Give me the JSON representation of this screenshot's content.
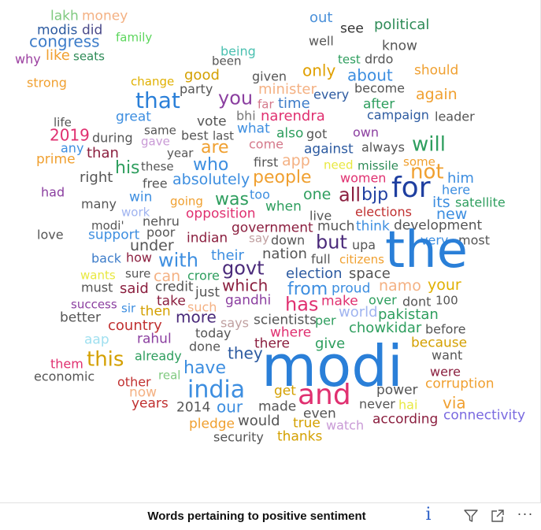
{
  "chart_data": {
    "type": "wordcloud",
    "title": "Words pertaining to positive sentiment",
    "words": [
      {
        "text": "lakh",
        "color": "#7fc97f"
      },
      {
        "text": "money",
        "color": "#f4b183"
      },
      {
        "text": "out",
        "color": "#4a90d9"
      },
      {
        "text": "modis",
        "color": "#2c5aa0"
      },
      {
        "text": "did",
        "color": "#4a4a8a"
      },
      {
        "text": "see",
        "color": "#333333"
      },
      {
        "text": "political",
        "color": "#2e8b57"
      },
      {
        "text": "congress",
        "color": "#3d7cc9"
      },
      {
        "text": "family",
        "color": "#5cd65c"
      },
      {
        "text": "well",
        "color": "#555555"
      },
      {
        "text": "know",
        "color": "#555555"
      },
      {
        "text": "why",
        "color": "#9b3fa0"
      },
      {
        "text": "like",
        "color": "#f0a030"
      },
      {
        "text": "seats",
        "color": "#2e8b57"
      },
      {
        "text": "being",
        "color": "#4ac0b0"
      },
      {
        "text": "test",
        "color": "#2e9e5e"
      },
      {
        "text": "drdo",
        "color": "#555555"
      },
      {
        "text": "been",
        "color": "#555555"
      },
      {
        "text": "only",
        "color": "#e0a000"
      },
      {
        "text": "should",
        "color": "#f0a030"
      },
      {
        "text": "strong",
        "color": "#f0a030"
      },
      {
        "text": "change",
        "color": "#e0b000"
      },
      {
        "text": "good",
        "color": "#d4a000"
      },
      {
        "text": "given",
        "color": "#555555"
      },
      {
        "text": "about",
        "color": "#3d8ee0"
      },
      {
        "text": "party",
        "color": "#555555"
      },
      {
        "text": "minister",
        "color": "#f4b183"
      },
      {
        "text": "become",
        "color": "#555555"
      },
      {
        "text": "again",
        "color": "#f0a030"
      },
      {
        "text": "that",
        "color": "#2a7fd8"
      },
      {
        "text": "you",
        "color": "#8b3fa0"
      },
      {
        "text": "every",
        "color": "#2c5aa0"
      },
      {
        "text": "far",
        "color": "#d4788a"
      },
      {
        "text": "time",
        "color": "#3d7cc9"
      },
      {
        "text": "after",
        "color": "#2e9e5e"
      },
      {
        "text": "great",
        "color": "#3d8ee0"
      },
      {
        "text": "bhi",
        "color": "#777777"
      },
      {
        "text": "narendra",
        "color": "#e03070"
      },
      {
        "text": "campaign",
        "color": "#2c5aa0"
      },
      {
        "text": "leader",
        "color": "#555555"
      },
      {
        "text": "life",
        "color": "#555555"
      },
      {
        "text": "vote",
        "color": "#555555"
      },
      {
        "text": "same",
        "color": "#555555"
      },
      {
        "text": "what",
        "color": "#3d8ee0"
      },
      {
        "text": "2019",
        "color": "#e03070"
      },
      {
        "text": "best",
        "color": "#555555"
      },
      {
        "text": "last",
        "color": "#555555"
      },
      {
        "text": "also",
        "color": "#2e9e5e"
      },
      {
        "text": "got",
        "color": "#555555"
      },
      {
        "text": "own",
        "color": "#8b3fa0"
      },
      {
        "text": "during",
        "color": "#555555"
      },
      {
        "text": "gave",
        "color": "#c99ad6"
      },
      {
        "text": "come",
        "color": "#d4788a"
      },
      {
        "text": "any",
        "color": "#3d8ee0"
      },
      {
        "text": "are",
        "color": "#f0a030"
      },
      {
        "text": "against",
        "color": "#2c5aa0"
      },
      {
        "text": "always",
        "color": "#555555"
      },
      {
        "text": "will",
        "color": "#2e9e5e"
      },
      {
        "text": "than",
        "color": "#8b1f3f"
      },
      {
        "text": "year",
        "color": "#555555"
      },
      {
        "text": "prime",
        "color": "#f0a030"
      },
      {
        "text": "app",
        "color": "#f4b183"
      },
      {
        "text": "need",
        "color": "#e8e840"
      },
      {
        "text": "missile",
        "color": "#2e8b57"
      },
      {
        "text": "some",
        "color": "#f0a030"
      },
      {
        "text": "first",
        "color": "#555555"
      },
      {
        "text": "his",
        "color": "#2e9e5e"
      },
      {
        "text": "these",
        "color": "#555555"
      },
      {
        "text": "who",
        "color": "#3d8ee0"
      },
      {
        "text": "not",
        "color": "#f0a030"
      },
      {
        "text": "right",
        "color": "#555555"
      },
      {
        "text": "women",
        "color": "#e03070"
      },
      {
        "text": "him",
        "color": "#3d8ee0"
      },
      {
        "text": "free",
        "color": "#555555"
      },
      {
        "text": "absolutely",
        "color": "#3d8ee0"
      },
      {
        "text": "people",
        "color": "#f0a030"
      },
      {
        "text": "for",
        "color": "#1f3fa0"
      },
      {
        "text": "had",
        "color": "#8b3fa0"
      },
      {
        "text": "win",
        "color": "#3d8ee0"
      },
      {
        "text": "too",
        "color": "#3d8ee0"
      },
      {
        "text": "one",
        "color": "#2e9e5e"
      },
      {
        "text": "all",
        "color": "#8b1f3f"
      },
      {
        "text": "bjp",
        "color": "#1f3fa0"
      },
      {
        "text": "here",
        "color": "#3d8ee0"
      },
      {
        "text": "many",
        "color": "#555555"
      },
      {
        "text": "going",
        "color": "#f0a030"
      },
      {
        "text": "was",
        "color": "#2e9e5e"
      },
      {
        "text": "its",
        "color": "#3d8ee0"
      },
      {
        "text": "satellite",
        "color": "#2e9e5e"
      },
      {
        "text": "work",
        "color": "#a0b4f0"
      },
      {
        "text": "nehru",
        "color": "#555555"
      },
      {
        "text": "when",
        "color": "#2e9e5e"
      },
      {
        "text": "elections",
        "color": "#c03030"
      },
      {
        "text": "new",
        "color": "#3d8ee0"
      },
      {
        "text": "opposition",
        "color": "#e03070"
      },
      {
        "text": "live",
        "color": "#555555"
      },
      {
        "text": "modi'",
        "color": "#555555"
      },
      {
        "text": "poor",
        "color": "#555555"
      },
      {
        "text": "government",
        "color": "#8b1f3f"
      },
      {
        "text": "much",
        "color": "#555555"
      },
      {
        "text": "think",
        "color": "#3d8ee0"
      },
      {
        "text": "development",
        "color": "#555555"
      },
      {
        "text": "love",
        "color": "#555555"
      },
      {
        "text": "support",
        "color": "#3d8ee0"
      },
      {
        "text": "indian",
        "color": "#8b1f3f"
      },
      {
        "text": "say",
        "color": "#c0a0a0"
      },
      {
        "text": "down",
        "color": "#555555"
      },
      {
        "text": "but",
        "color": "#4a2a7a"
      },
      {
        "text": "upa",
        "color": "#555555"
      },
      {
        "text": "very",
        "color": "#3d8ee0"
      },
      {
        "text": "most",
        "color": "#555555"
      },
      {
        "text": "under",
        "color": "#555555"
      },
      {
        "text": "the",
        "color": "#2a7fd8"
      },
      {
        "text": "back",
        "color": "#3d7cc9"
      },
      {
        "text": "how",
        "color": "#8b1f3f"
      },
      {
        "text": "with",
        "color": "#3d8ee0"
      },
      {
        "text": "their",
        "color": "#3d8ee0"
      },
      {
        "text": "nation",
        "color": "#555555"
      },
      {
        "text": "full",
        "color": "#555555"
      },
      {
        "text": "citizens",
        "color": "#f0a030"
      },
      {
        "text": "govt",
        "color": "#4a2a7a"
      },
      {
        "text": "wants",
        "color": "#e8e840"
      },
      {
        "text": "sure",
        "color": "#555555"
      },
      {
        "text": "can",
        "color": "#f4b183"
      },
      {
        "text": "crore",
        "color": "#2e9e5e"
      },
      {
        "text": "election",
        "color": "#2c5aa0"
      },
      {
        "text": "space",
        "color": "#555555"
      },
      {
        "text": "must",
        "color": "#555555"
      },
      {
        "text": "said",
        "color": "#8b1f3f"
      },
      {
        "text": "credit",
        "color": "#555555"
      },
      {
        "text": "which",
        "color": "#8b1f3f"
      },
      {
        "text": "from",
        "color": "#3d8ee0"
      },
      {
        "text": "proud",
        "color": "#3d8ee0"
      },
      {
        "text": "namo",
        "color": "#f4b183"
      },
      {
        "text": "your",
        "color": "#e0b000"
      },
      {
        "text": "just",
        "color": "#555555"
      },
      {
        "text": "has",
        "color": "#e03070"
      },
      {
        "text": "over",
        "color": "#2e9e5e"
      },
      {
        "text": "dont",
        "color": "#555555"
      },
      {
        "text": "100",
        "color": "#555555"
      },
      {
        "text": "success",
        "color": "#8b3fa0"
      },
      {
        "text": "take",
        "color": "#8b1f3f"
      },
      {
        "text": "gandhi",
        "color": "#8b3fa0"
      },
      {
        "text": "make",
        "color": "#e03070"
      },
      {
        "text": "sir",
        "color": "#3d8ee0"
      },
      {
        "text": "then",
        "color": "#d4a000"
      },
      {
        "text": "such",
        "color": "#f4b183"
      },
      {
        "text": "world",
        "color": "#a0b4f0"
      },
      {
        "text": "pakistan",
        "color": "#2e9e5e"
      },
      {
        "text": "better",
        "color": "#555555"
      },
      {
        "text": "more",
        "color": "#4a2a7a"
      },
      {
        "text": "says",
        "color": "#c0a0a0"
      },
      {
        "text": "scientists",
        "color": "#555555"
      },
      {
        "text": "per",
        "color": "#2e9e5e"
      },
      {
        "text": "country",
        "color": "#c03030"
      },
      {
        "text": "where",
        "color": "#e03070"
      },
      {
        "text": "chowkidar",
        "color": "#2e9e5e"
      },
      {
        "text": "before",
        "color": "#555555"
      },
      {
        "text": "aap",
        "color": "#a0e0f0"
      },
      {
        "text": "rahul",
        "color": "#8b3fa0"
      },
      {
        "text": "today",
        "color": "#555555"
      },
      {
        "text": "modi",
        "color": "#2a7fd8"
      },
      {
        "text": "because",
        "color": "#d4a000"
      },
      {
        "text": "done",
        "color": "#555555"
      },
      {
        "text": "there",
        "color": "#8b1f3f"
      },
      {
        "text": "give",
        "color": "#2e9e5e"
      },
      {
        "text": "want",
        "color": "#555555"
      },
      {
        "text": "this",
        "color": "#d4a000"
      },
      {
        "text": "already",
        "color": "#2e9e5e"
      },
      {
        "text": "they",
        "color": "#2c5aa0"
      },
      {
        "text": "them",
        "color": "#e03070"
      },
      {
        "text": "were",
        "color": "#8b1f3f"
      },
      {
        "text": "have",
        "color": "#3d8ee0"
      },
      {
        "text": "real",
        "color": "#7fc97f"
      },
      {
        "text": "economic",
        "color": "#555555"
      },
      {
        "text": "corruption",
        "color": "#f0a030"
      },
      {
        "text": "other",
        "color": "#c03030"
      },
      {
        "text": "india",
        "color": "#3d8ee0"
      },
      {
        "text": "power",
        "color": "#555555"
      },
      {
        "text": "now",
        "color": "#f4b183"
      },
      {
        "text": "get",
        "color": "#d4a000"
      },
      {
        "text": "and",
        "color": "#e03070"
      },
      {
        "text": "via",
        "color": "#f0a030"
      },
      {
        "text": "years",
        "color": "#c03030"
      },
      {
        "text": "2014",
        "color": "#555555"
      },
      {
        "text": "our",
        "color": "#3d8ee0"
      },
      {
        "text": "made",
        "color": "#555555"
      },
      {
        "text": "never",
        "color": "#555555"
      },
      {
        "text": "hai",
        "color": "#e8e840"
      },
      {
        "text": "connectivity",
        "color": "#7a6ae0"
      },
      {
        "text": "even",
        "color": "#555555"
      },
      {
        "text": "pledge",
        "color": "#f0a030"
      },
      {
        "text": "would",
        "color": "#555555"
      },
      {
        "text": "true",
        "color": "#d4a000"
      },
      {
        "text": "watch",
        "color": "#c99ad6"
      },
      {
        "text": "according",
        "color": "#8b1f3f"
      },
      {
        "text": "security",
        "color": "#555555"
      },
      {
        "text": "thanks",
        "color": "#d4a000"
      }
    ]
  },
  "footer": {
    "info_glyph": "i",
    "more_glyph": "···"
  },
  "icons": [
    "info-icon",
    "filter-icon",
    "focus-mode-icon",
    "more-options-icon"
  ]
}
